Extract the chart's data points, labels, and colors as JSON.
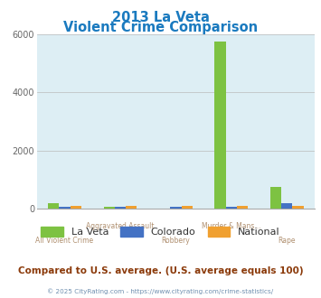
{
  "title_line1": "2013 La Veta",
  "title_line2": "Violent Crime Comparison",
  "categories": [
    "All Violent Crime",
    "Aggravated Assault",
    "Robbery",
    "Murder & Mans...",
    "Rape"
  ],
  "xtick_top": [
    "",
    "Aggravated Assault",
    "",
    "Murder & Mans...",
    ""
  ],
  "xtick_bottom": [
    "All Violent Crime",
    "",
    "Robbery",
    "",
    "Rape"
  ],
  "series": {
    "La Veta": [
      200,
      50,
      0,
      5750,
      750
    ],
    "Colorado": [
      55,
      55,
      50,
      55,
      175
    ],
    "National": [
      100,
      100,
      100,
      95,
      100
    ]
  },
  "colors": {
    "La Veta": "#7dc242",
    "Colorado": "#4472c4",
    "National": "#f0a030"
  },
  "ylim": [
    0,
    6000
  ],
  "yticks": [
    0,
    2000,
    4000,
    6000
  ],
  "plot_bg": "#ddeef4",
  "title_color": "#1a7abf",
  "xlabel_color": "#b09070",
  "legend_text_color": "#333333",
  "footer_text": "Compared to U.S. average. (U.S. average equals 100)",
  "copyright_text": "© 2025 CityRating.com - https://www.cityrating.com/crime-statistics/",
  "footer_color": "#8b3a0a",
  "copyright_color": "#7090b0",
  "grid_color": "#bbbbbb",
  "spine_color": "#aaaaaa"
}
